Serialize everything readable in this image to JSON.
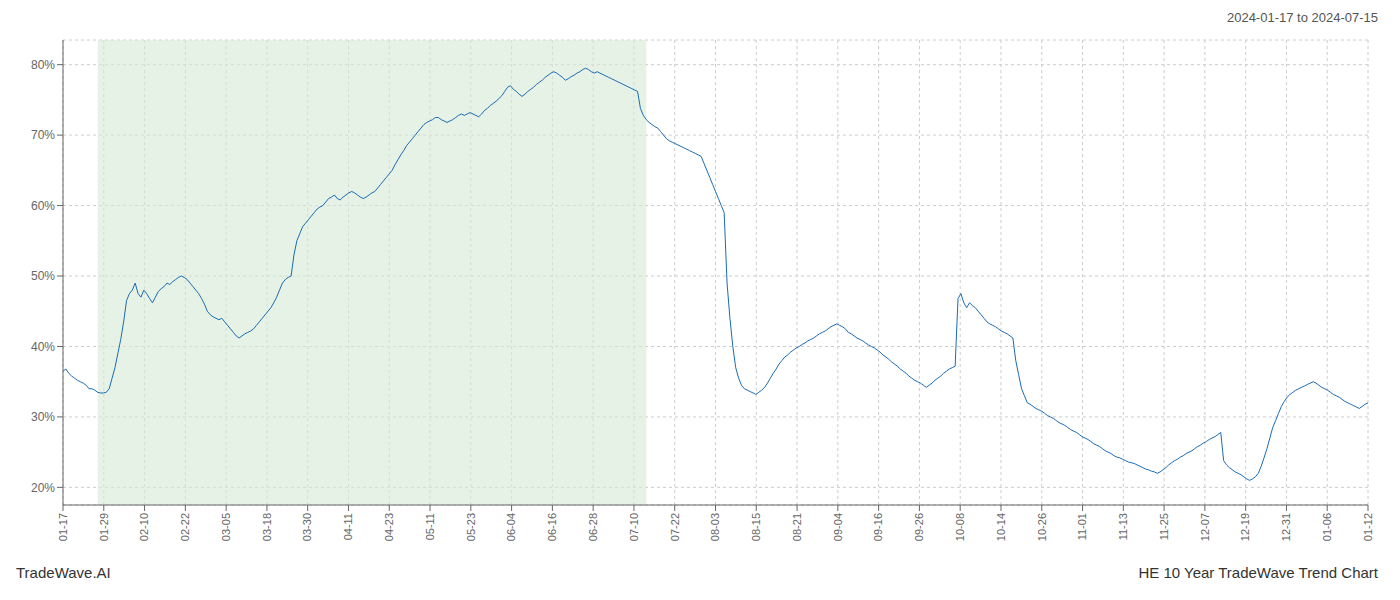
{
  "chart_data": {
    "type": "line",
    "title": "HE 10 Year TradeWave Trend Chart",
    "subtitle": "2024-01-17 to 2024-07-15",
    "annotations": [
      "TradeWave.AI"
    ],
    "color": "#1a6bb5",
    "grid": true,
    "xlim": [
      0,
      452
    ],
    "xticks": [
      {
        "value": 0,
        "label": "01-17"
      },
      {
        "value": 14.125,
        "label": "01-29"
      },
      {
        "value": 28.25,
        "label": "02-10"
      },
      {
        "value": 42.375,
        "label": "02-22"
      },
      {
        "value": 56.5,
        "label": "03-05"
      },
      {
        "value": 70.625,
        "label": "03-18"
      },
      {
        "value": 84.75,
        "label": "03-30"
      },
      {
        "value": 98.875,
        "label": "04-11"
      },
      {
        "value": 113,
        "label": "04-23"
      },
      {
        "value": 127.125,
        "label": "05-11"
      },
      {
        "value": 141.25,
        "label": "05-23"
      },
      {
        "value": 155.375,
        "label": "06-04"
      },
      {
        "value": 169.5,
        "label": "06-16"
      },
      {
        "value": 183.625,
        "label": "06-28"
      },
      {
        "value": 197.75,
        "label": "07-10"
      },
      {
        "value": 211.875,
        "label": "07-22"
      },
      {
        "value": 226,
        "label": "08-03"
      },
      {
        "value": 240.125,
        "label": "08-15"
      },
      {
        "value": 254.25,
        "label": "08-21"
      },
      {
        "value": 268.375,
        "label": "09-04"
      },
      {
        "value": 282.5,
        "label": "09-16"
      },
      {
        "value": 296.625,
        "label": "09-26"
      },
      {
        "value": 310.75,
        "label": "10-08"
      },
      {
        "value": 324.875,
        "label": "10-14"
      },
      {
        "value": 339,
        "label": "10-26"
      },
      {
        "value": 353.125,
        "label": "11-01"
      },
      {
        "value": 367.25,
        "label": "11-13"
      },
      {
        "value": 381.375,
        "label": "11-25"
      },
      {
        "value": 395.5,
        "label": "12-07"
      },
      {
        "value": 409.625,
        "label": "12-19"
      },
      {
        "value": 423.75,
        "label": "12-31"
      },
      {
        "value": 437.875,
        "label": "01-06"
      },
      {
        "value": 452,
        "label": "01-12"
      }
    ],
    "ylim": [
      0.175,
      0.835
    ],
    "yticks": [
      {
        "value": 0.2,
        "label": "20%"
      },
      {
        "value": 0.3,
        "label": "30%"
      },
      {
        "value": 0.4,
        "label": "40%"
      },
      {
        "value": 0.5,
        "label": "50%"
      },
      {
        "value": 0.6,
        "label": "60%"
      },
      {
        "value": 0.7,
        "label": "70%"
      },
      {
        "value": 0.8,
        "label": "80%"
      }
    ],
    "shade": {
      "x_start": 12,
      "x_end": 202,
      "color": "#d4ead4"
    },
    "values": [
      0.365,
      0.368,
      0.362,
      0.358,
      0.355,
      0.352,
      0.35,
      0.348,
      0.345,
      0.34,
      0.34,
      0.338,
      0.335,
      0.334,
      0.334,
      0.335,
      0.34,
      0.355,
      0.37,
      0.39,
      0.41,
      0.435,
      0.465,
      0.475,
      0.48,
      0.49,
      0.475,
      0.47,
      0.48,
      0.475,
      0.468,
      0.462,
      0.47,
      0.478,
      0.482,
      0.485,
      0.49,
      0.488,
      0.492,
      0.495,
      0.498,
      0.5,
      0.498,
      0.495,
      0.49,
      0.485,
      0.48,
      0.475,
      0.468,
      0.46,
      0.45,
      0.445,
      0.442,
      0.44,
      0.438,
      0.44,
      0.435,
      0.43,
      0.425,
      0.42,
      0.415,
      0.412,
      0.415,
      0.418,
      0.42,
      0.422,
      0.425,
      0.43,
      0.435,
      0.44,
      0.445,
      0.45,
      0.455,
      0.462,
      0.47,
      0.48,
      0.49,
      0.495,
      0.498,
      0.5,
      0.53,
      0.55,
      0.56,
      0.57,
      0.575,
      0.58,
      0.585,
      0.59,
      0.595,
      0.598,
      0.6,
      0.605,
      0.61,
      0.612,
      0.615,
      0.61,
      0.608,
      0.612,
      0.615,
      0.618,
      0.62,
      0.618,
      0.615,
      0.612,
      0.61,
      0.612,
      0.615,
      0.618,
      0.62,
      0.625,
      0.63,
      0.635,
      0.64,
      0.645,
      0.65,
      0.658,
      0.665,
      0.672,
      0.678,
      0.685,
      0.69,
      0.695,
      0.7,
      0.705,
      0.71,
      0.715,
      0.718,
      0.72,
      0.722,
      0.725,
      0.725,
      0.722,
      0.72,
      0.718,
      0.72,
      0.722,
      0.725,
      0.728,
      0.73,
      0.728,
      0.73,
      0.732,
      0.73,
      0.728,
      0.726,
      0.73,
      0.735,
      0.738,
      0.742,
      0.745,
      0.748,
      0.752,
      0.756,
      0.762,
      0.768,
      0.77,
      0.765,
      0.762,
      0.758,
      0.755,
      0.758,
      0.762,
      0.765,
      0.768,
      0.772,
      0.775,
      0.778,
      0.782,
      0.785,
      0.788,
      0.79,
      0.788,
      0.785,
      0.782,
      0.778,
      0.78,
      0.783,
      0.785,
      0.788,
      0.79,
      0.793,
      0.795,
      0.793,
      0.79,
      0.788,
      0.79,
      0.788,
      0.786,
      0.784,
      0.782,
      0.78,
      0.778,
      0.776,
      0.774,
      0.772,
      0.77,
      0.768,
      0.766,
      0.764,
      0.762,
      0.738,
      0.728,
      0.722,
      0.718,
      0.715,
      0.712,
      0.71,
      0.705,
      0.7,
      0.695,
      0.692,
      0.69,
      0.688,
      0.686,
      0.684,
      0.682,
      0.68,
      0.678,
      0.676,
      0.674,
      0.672,
      0.67,
      0.66,
      0.65,
      0.64,
      0.63,
      0.62,
      0.61,
      0.6,
      0.59,
      0.49,
      0.44,
      0.4,
      0.37,
      0.355,
      0.345,
      0.34,
      0.338,
      0.336,
      0.334,
      0.332,
      0.335,
      0.338,
      0.342,
      0.348,
      0.355,
      0.362,
      0.368,
      0.375,
      0.38,
      0.385,
      0.388,
      0.392,
      0.395,
      0.398,
      0.4,
      0.403,
      0.405,
      0.408,
      0.41,
      0.412,
      0.415,
      0.418,
      0.42,
      0.422,
      0.425,
      0.428,
      0.43,
      0.432,
      0.43,
      0.428,
      0.425,
      0.42,
      0.418,
      0.415,
      0.412,
      0.41,
      0.408,
      0.405,
      0.402,
      0.4,
      0.398,
      0.395,
      0.392,
      0.388,
      0.385,
      0.382,
      0.378,
      0.375,
      0.372,
      0.368,
      0.365,
      0.362,
      0.358,
      0.355,
      0.352,
      0.35,
      0.348,
      0.345,
      0.342,
      0.345,
      0.348,
      0.352,
      0.355,
      0.358,
      0.362,
      0.365,
      0.368,
      0.37,
      0.372,
      0.468,
      0.475,
      0.462,
      0.455,
      0.462,
      0.458,
      0.455,
      0.45,
      0.445,
      0.44,
      0.435,
      0.432,
      0.43,
      0.428,
      0.425,
      0.422,
      0.42,
      0.418,
      0.415,
      0.412,
      0.38,
      0.36,
      0.34,
      0.33,
      0.32,
      0.318,
      0.315,
      0.312,
      0.31,
      0.308,
      0.305,
      0.302,
      0.3,
      0.298,
      0.295,
      0.292,
      0.29,
      0.288,
      0.285,
      0.282,
      0.28,
      0.278,
      0.275,
      0.272,
      0.27,
      0.268,
      0.265,
      0.262,
      0.26,
      0.258,
      0.255,
      0.252,
      0.25,
      0.248,
      0.245,
      0.243,
      0.242,
      0.24,
      0.238,
      0.236,
      0.235,
      0.234,
      0.232,
      0.23,
      0.228,
      0.226,
      0.225,
      0.223,
      0.222,
      0.22,
      0.222,
      0.225,
      0.228,
      0.232,
      0.235,
      0.238,
      0.24,
      0.243,
      0.245,
      0.248,
      0.25,
      0.252,
      0.255,
      0.258,
      0.26,
      0.263,
      0.265,
      0.268,
      0.27,
      0.272,
      0.275,
      0.278,
      0.238,
      0.232,
      0.228,
      0.225,
      0.222,
      0.22,
      0.218,
      0.215,
      0.212,
      0.21,
      0.212,
      0.215,
      0.22,
      0.23,
      0.242,
      0.255,
      0.27,
      0.285,
      0.295,
      0.305,
      0.315,
      0.322,
      0.328,
      0.332,
      0.335,
      0.338,
      0.34,
      0.342,
      0.344,
      0.346,
      0.348,
      0.35,
      0.348,
      0.345,
      0.342,
      0.34,
      0.338,
      0.335,
      0.332,
      0.33,
      0.328,
      0.325,
      0.322,
      0.32,
      0.318,
      0.316,
      0.314,
      0.312,
      0.315,
      0.318,
      0.32
    ]
  }
}
